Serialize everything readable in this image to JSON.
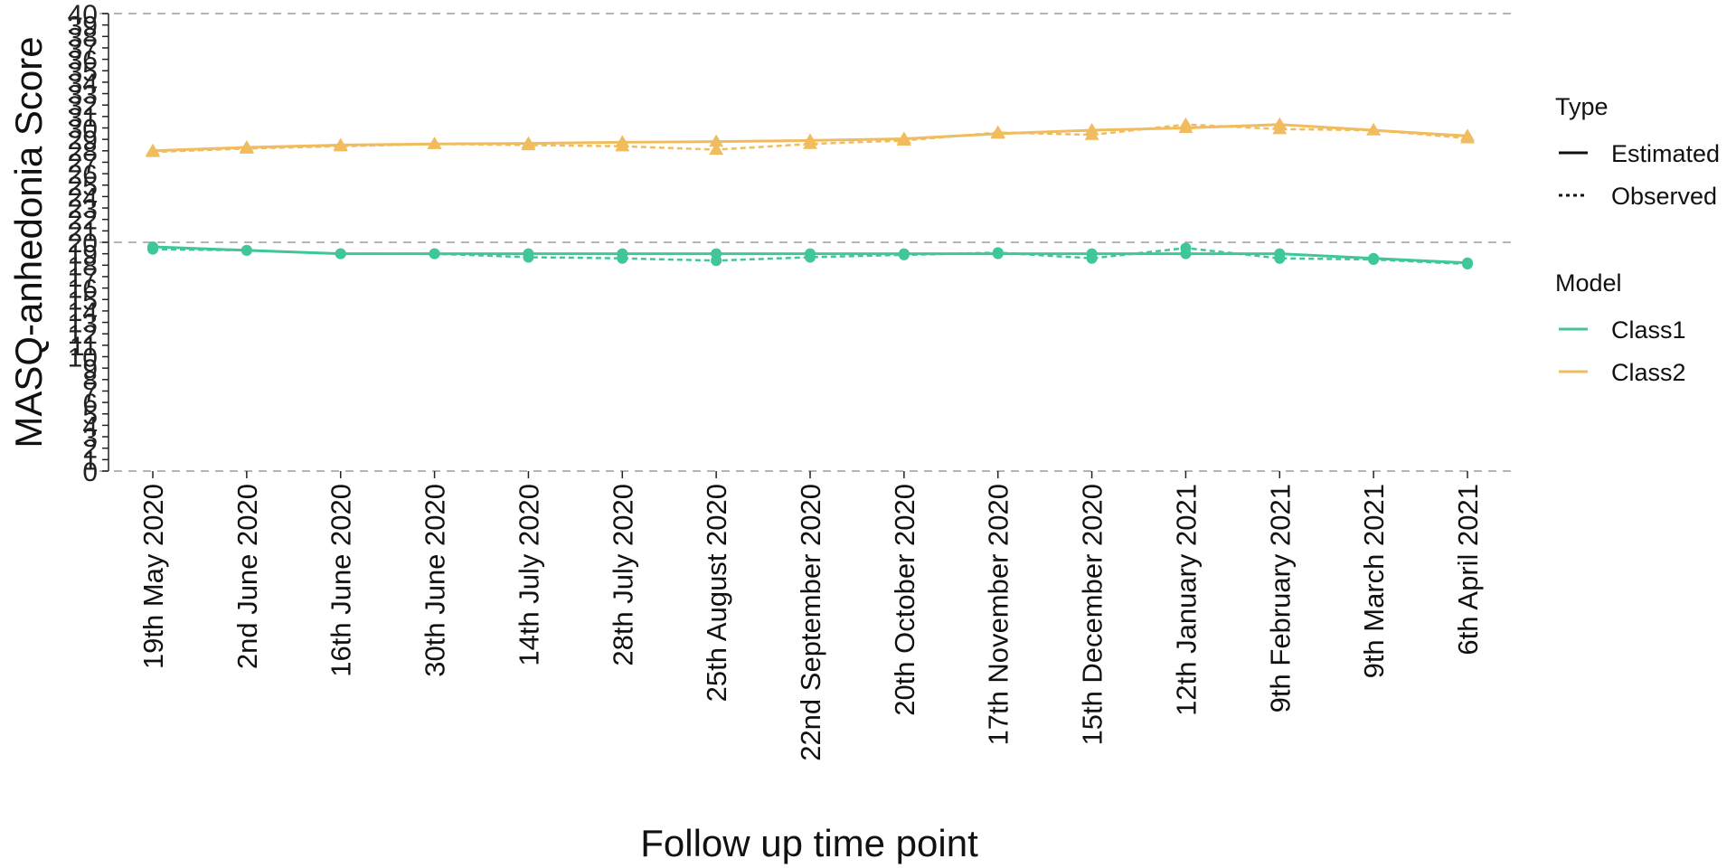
{
  "chart_data": {
    "type": "line",
    "xlabel": "Follow up time point",
    "ylabel": "MASQ-anhedonia Score",
    "categories": [
      "19th May 2020",
      "2nd June 2020",
      "16th June 2020",
      "30th June 2020",
      "14th July 2020",
      "28th July 2020",
      "25th August 2020",
      "22nd September 2020",
      "20th October 2020",
      "17th November 2020",
      "15th December 2020",
      "12th January 2021",
      "9th February 2021",
      "9th March 2021",
      "6th April 2021"
    ],
    "ylim": [
      0,
      40
    ],
    "yticks": [
      "0",
      "1",
      "2",
      "3",
      "4",
      "5",
      "6",
      "7",
      "8",
      "9",
      "10",
      "11",
      "12",
      "13",
      "14",
      "15",
      "16",
      "17",
      "18",
      "19",
      "20",
      "21",
      "22",
      "23",
      "24",
      "25",
      "26",
      "27",
      "28",
      "29",
      "30",
      "31",
      "32",
      "33",
      "34",
      "35",
      "36",
      "37",
      "38",
      "39",
      "40"
    ],
    "reference_lines": [
      20,
      40,
      0
    ],
    "legend": {
      "type_title": "Type",
      "type_items": [
        {
          "label": "Estimated",
          "style": "solid"
        },
        {
          "label": "Observed",
          "style": "dashed"
        }
      ],
      "model_title": "Model",
      "model_items": [
        {
          "label": "Class1",
          "color": "#3fc79a"
        },
        {
          "label": "Class2",
          "color": "#f0bc5e"
        }
      ]
    },
    "series": [
      {
        "model": "Class1",
        "type": "Estimated",
        "color": "#3fc79a",
        "marker": "circle",
        "values": [
          19.6,
          19.3,
          19.0,
          19.0,
          19.0,
          19.0,
          19.0,
          19.0,
          19.0,
          19.0,
          19.0,
          19.0,
          19.0,
          18.6,
          18.2
        ]
      },
      {
        "model": "Class1",
        "type": "Observed",
        "color": "#3fc79a",
        "marker": "circle",
        "values": [
          19.4,
          19.3,
          19.0,
          19.0,
          18.7,
          18.6,
          18.4,
          18.7,
          18.9,
          19.1,
          18.6,
          19.5,
          18.6,
          18.5,
          18.1
        ]
      },
      {
        "model": "Class2",
        "type": "Estimated",
        "color": "#f0bc5e",
        "marker": "triangle",
        "values": [
          28.0,
          28.3,
          28.5,
          28.6,
          28.65,
          28.75,
          28.8,
          28.9,
          29.05,
          29.5,
          29.8,
          30.0,
          30.3,
          29.8,
          29.3
        ]
      },
      {
        "model": "Class2",
        "type": "Observed",
        "color": "#f0bc5e",
        "marker": "triangle",
        "values": [
          27.9,
          28.2,
          28.4,
          28.6,
          28.5,
          28.4,
          28.1,
          28.6,
          28.9,
          29.6,
          29.4,
          30.3,
          29.9,
          29.8,
          29.1
        ]
      }
    ]
  }
}
